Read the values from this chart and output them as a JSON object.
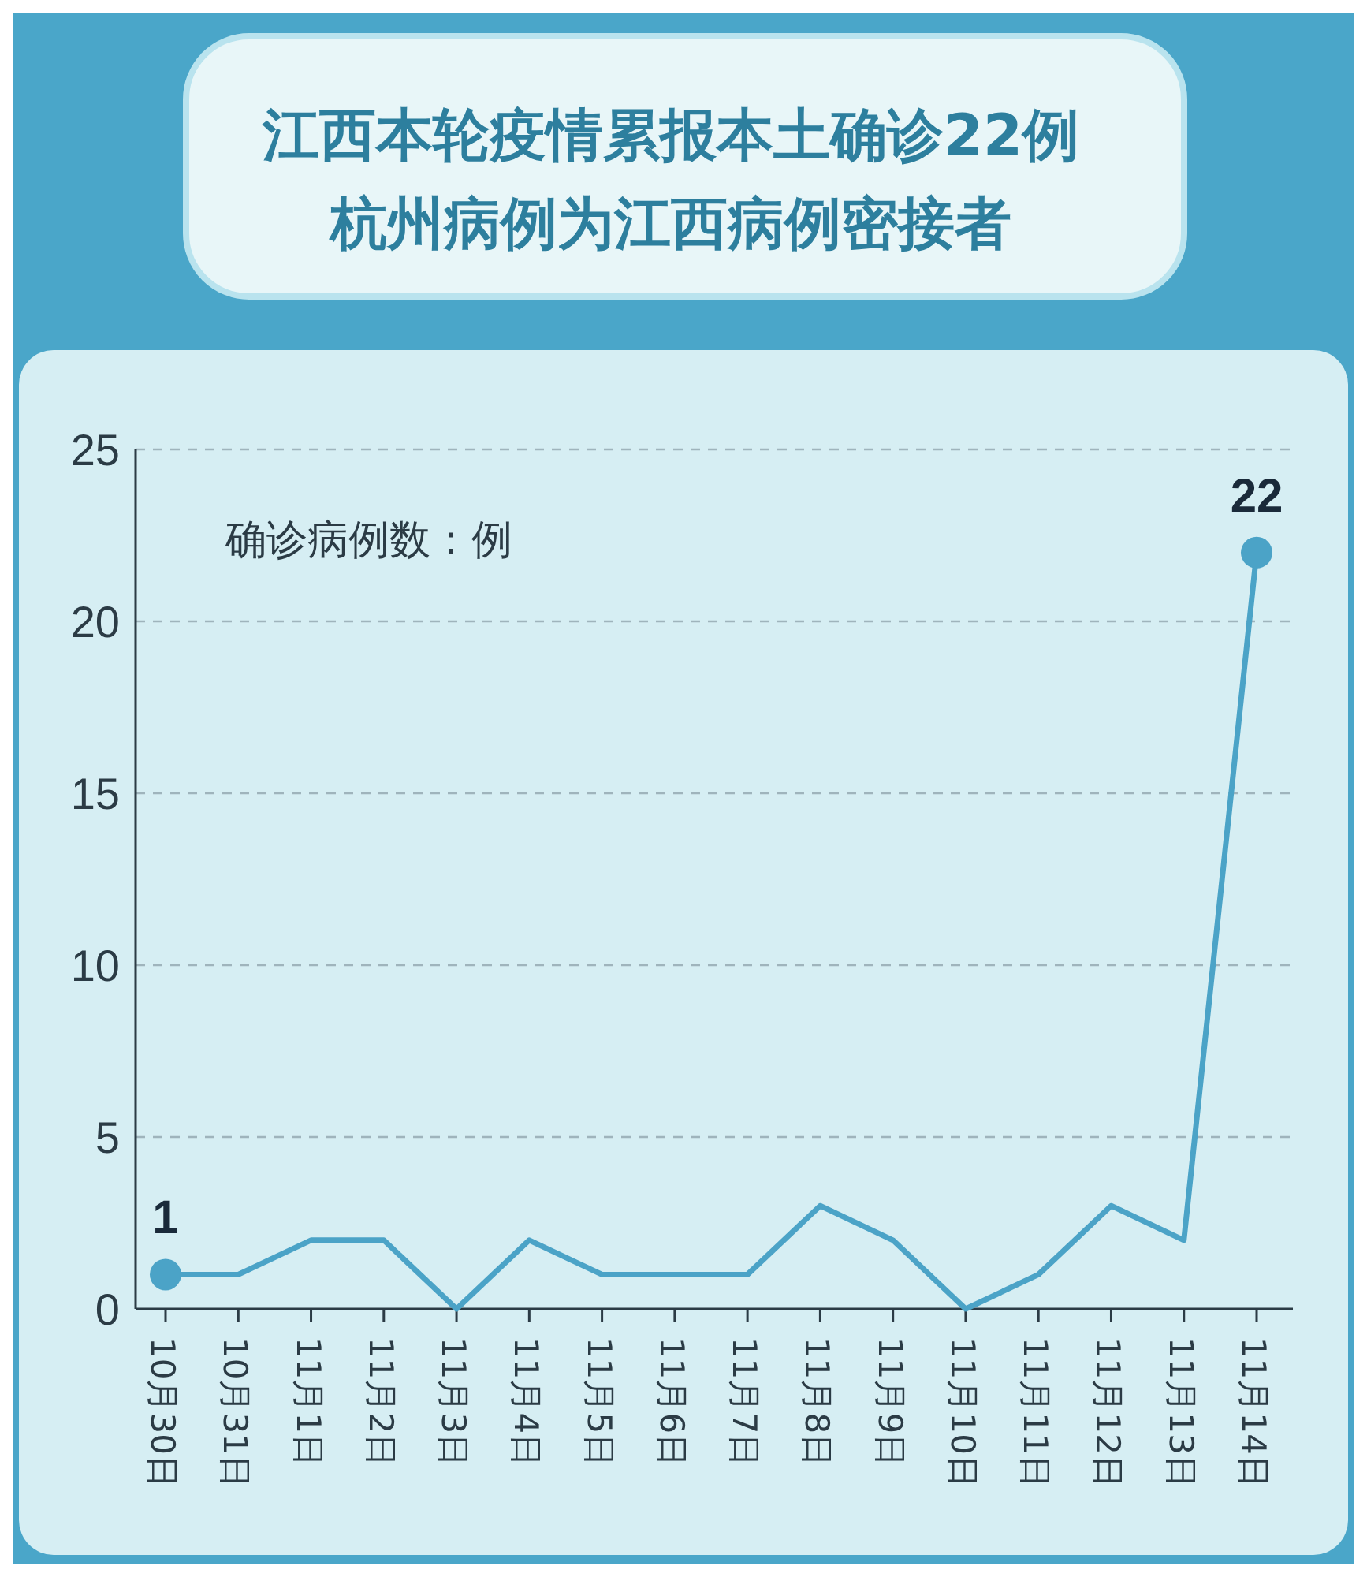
{
  "chart_data": {
    "type": "line",
    "title": "江西本轮疫情累报本土确诊22例",
    "subtitle": "杭州病例为江西病例密接者",
    "ylabel": "确诊病例数：例",
    "categories": [
      "10月30日",
      "10月31日",
      "11月1日",
      "11月2日",
      "11月3日",
      "11月4日",
      "11月5日",
      "11月6日",
      "11月7日",
      "11月8日",
      "11月9日",
      "11月10日",
      "11月11日",
      "11月12日",
      "11月13日",
      "11月14日"
    ],
    "series": [
      {
        "color": "#4ba3c7",
        "values": [
          1,
          1,
          2,
          2,
          0,
          2,
          1,
          1,
          1,
          3,
          2,
          0,
          1,
          3,
          2,
          22
        ],
        "value_labels": [
          "1",
          null,
          null,
          null,
          null,
          null,
          null,
          null,
          null,
          null,
          null,
          null,
          null,
          null,
          null,
          "22"
        ]
      }
    ],
    "ylim": [
      0,
      25
    ],
    "yticks": [
      0,
      5,
      10,
      15,
      20,
      25
    ],
    "grid": "y",
    "line_style": "solid"
  }
}
